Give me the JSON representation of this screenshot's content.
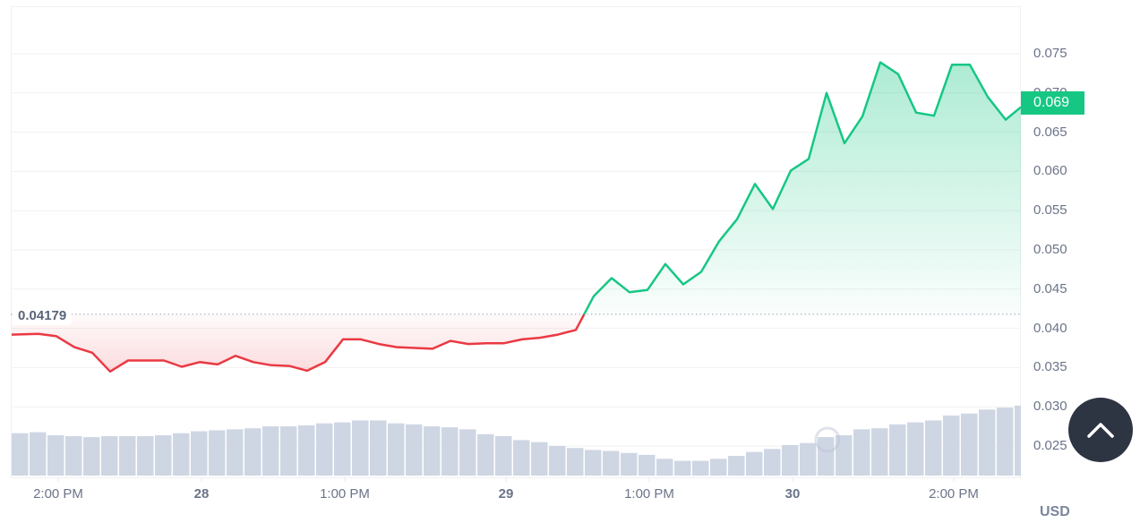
{
  "chart_data": {
    "type": "area",
    "title": "",
    "xlabel": "",
    "ylabel": "USD",
    "ylim": [
      0.021,
      0.079
    ],
    "grid": true,
    "legend": null,
    "y_ticks": [
      "0.075",
      "0.070",
      "0.065",
      "0.060",
      "0.055",
      "0.050",
      "0.045",
      "0.040",
      "0.035",
      "0.030",
      "0.025"
    ],
    "x_ticks": [
      {
        "label": "2:00 PM",
        "bold": false
      },
      {
        "label": "28",
        "bold": true
      },
      {
        "label": "1:00 PM",
        "bold": false
      },
      {
        "label": "29",
        "bold": true
      },
      {
        "label": "1:00 PM",
        "bold": false
      },
      {
        "label": "30",
        "bold": true
      },
      {
        "label": "2:00 PM",
        "bold": false
      }
    ],
    "reference_price": 0.04179,
    "current_price": 0.069,
    "series": [
      {
        "name": "Price",
        "values": [
          0.0392,
          0.0393,
          0.039,
          0.0376,
          0.0369,
          0.0345,
          0.0359,
          0.0359,
          0.0359,
          0.0351,
          0.0357,
          0.0354,
          0.0365,
          0.0357,
          0.0353,
          0.0352,
          0.0346,
          0.0357,
          0.0386,
          0.0386,
          0.038,
          0.0376,
          0.0375,
          0.0374,
          0.0384,
          0.038,
          0.0381,
          0.0381,
          0.0386,
          0.0388,
          0.0392,
          0.0398,
          0.0441,
          0.0464,
          0.0446,
          0.0449,
          0.0482,
          0.0456,
          0.0472,
          0.0511,
          0.0539,
          0.0584,
          0.0552,
          0.0601,
          0.0616,
          0.07,
          0.0636,
          0.067,
          0.0739,
          0.0724,
          0.0675,
          0.0671,
          0.0736,
          0.0736,
          0.0695,
          0.0666,
          0.0682
        ]
      },
      {
        "name": "Volume",
        "values": [
          43,
          44,
          41,
          40,
          39,
          40,
          40,
          40,
          41,
          43,
          45,
          46,
          47,
          48,
          50,
          50,
          51,
          53,
          54,
          56,
          56,
          53,
          52,
          50,
          49,
          47,
          42,
          40,
          36,
          34,
          30,
          28,
          26,
          25,
          23,
          21,
          17,
          15,
          15,
          17,
          20,
          24,
          27,
          31,
          33,
          39,
          41,
          47,
          48,
          52,
          54,
          56,
          61,
          63,
          67,
          69,
          71
        ]
      }
    ]
  },
  "axis": {
    "currency_label": "USD"
  },
  "price_tag": {
    "label": "0.069",
    "color": "#16c784"
  },
  "reference_label": {
    "label": "0.04179"
  },
  "colors": {
    "up": "#16c784",
    "down": "#ea3943",
    "volume": "#cfd6e3",
    "grid": "#f0f1f3",
    "axis_text": "#6b7489"
  },
  "scroll_top_button": {
    "icon": "chevron-up-icon"
  }
}
